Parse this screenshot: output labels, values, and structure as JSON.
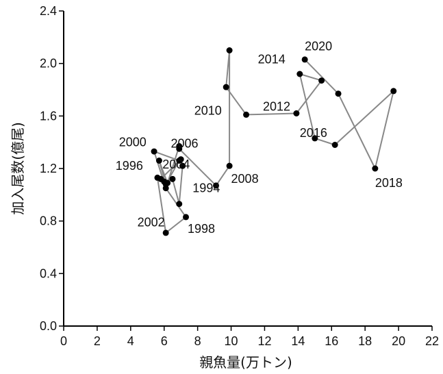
{
  "chart_data": {
    "type": "scatter",
    "xlabel": "親魚量(万トン)",
    "ylabel": "加入尾数(億尾)",
    "xlim": [
      0,
      22
    ],
    "ylim": [
      0,
      2.4
    ],
    "x_ticks": [
      0,
      2,
      4,
      6,
      8,
      10,
      12,
      14,
      16,
      18,
      20,
      22
    ],
    "y_ticks": [
      "0.0",
      "0.4",
      "0.8",
      "1.2",
      "1.6",
      "2.0",
      "2.4"
    ],
    "grid": false,
    "connected": true,
    "colors": {
      "line": "#888888",
      "marker": "#000000",
      "axis": "#000000"
    },
    "points": [
      {
        "year": 1990,
        "x": 6.0,
        "y": 1.1
      },
      {
        "year": 1991,
        "x": 6.5,
        "y": 1.12
      },
      {
        "year": 1992,
        "x": 6.9,
        "y": 0.93
      },
      {
        "year": 1993,
        "x": 7.1,
        "y": 1.22
      },
      {
        "year": 1994,
        "x": 7.0,
        "y": 1.27
      },
      {
        "year": 1995,
        "x": 5.8,
        "y": 1.12
      },
      {
        "year": 1996,
        "x": 5.6,
        "y": 1.13
      },
      {
        "year": 1997,
        "x": 6.1,
        "y": 0.71
      },
      {
        "year": 1998,
        "x": 7.3,
        "y": 0.83
      },
      {
        "year": 1999,
        "x": 6.1,
        "y": 1.05
      },
      {
        "year": 2000,
        "x": 5.4,
        "y": 1.33
      },
      {
        "year": 2001,
        "x": 6.9,
        "y": 1.26
      },
      {
        "year": 2002,
        "x": 6.1,
        "y": 1.08
      },
      {
        "year": 2003,
        "x": 5.7,
        "y": 1.26
      },
      {
        "year": 2004,
        "x": 6.2,
        "y": 1.09
      },
      {
        "year": 2005,
        "x": 6.9,
        "y": 1.37
      },
      {
        "year": 2006,
        "x": 6.9,
        "y": 1.35
      },
      {
        "year": 2007,
        "x": 9.1,
        "y": 1.07
      },
      {
        "year": 2008,
        "x": 9.9,
        "y": 1.22
      },
      {
        "year": 2009,
        "x": 9.9,
        "y": 2.1
      },
      {
        "year": 2010,
        "x": 9.7,
        "y": 1.82
      },
      {
        "year": 2011,
        "x": 10.9,
        "y": 1.61
      },
      {
        "year": 2012,
        "x": 13.9,
        "y": 1.62
      },
      {
        "year": 2013,
        "x": 15.4,
        "y": 1.87
      },
      {
        "year": 2014,
        "x": 14.1,
        "y": 1.92
      },
      {
        "year": 2015,
        "x": 15.0,
        "y": 1.43
      },
      {
        "year": 2016,
        "x": 16.2,
        "y": 1.38
      },
      {
        "year": 2017,
        "x": 19.7,
        "y": 1.79
      },
      {
        "year": 2018,
        "x": 18.6,
        "y": 1.2
      },
      {
        "year": 2019,
        "x": 16.4,
        "y": 1.77
      },
      {
        "year": 2020,
        "x": 14.4,
        "y": 2.03
      }
    ],
    "year_labels": [
      {
        "year": 1994,
        "text": "1994",
        "x": 7.7,
        "y": 1.02
      },
      {
        "year": 1996,
        "text": "1996",
        "x": 3.1,
        "y": 1.19
      },
      {
        "year": 1998,
        "text": "1998",
        "x": 7.4,
        "y": 0.71
      },
      {
        "year": 2000,
        "text": "2000",
        "x": 3.3,
        "y": 1.37
      },
      {
        "year": 2002,
        "text": "2002",
        "x": 4.4,
        "y": 0.76
      },
      {
        "year": 2004,
        "text": "2004",
        "x": 5.9,
        "y": 1.2
      },
      {
        "year": 2006,
        "text": "2006",
        "x": 6.4,
        "y": 1.36
      },
      {
        "year": 2008,
        "text": "2008",
        "x": 10.0,
        "y": 1.09
      },
      {
        "year": 2010,
        "text": "2010",
        "x": 7.8,
        "y": 1.61
      },
      {
        "year": 2012,
        "text": "2012",
        "x": 11.9,
        "y": 1.64
      },
      {
        "year": 2014,
        "text": "2014",
        "x": 11.6,
        "y": 2.0
      },
      {
        "year": 2016,
        "text": "2016",
        "x": 14.1,
        "y": 1.44
      },
      {
        "year": 2018,
        "text": "2018",
        "x": 18.6,
        "y": 1.06
      },
      {
        "year": 2020,
        "text": "2020",
        "x": 14.4,
        "y": 2.1
      }
    ]
  }
}
